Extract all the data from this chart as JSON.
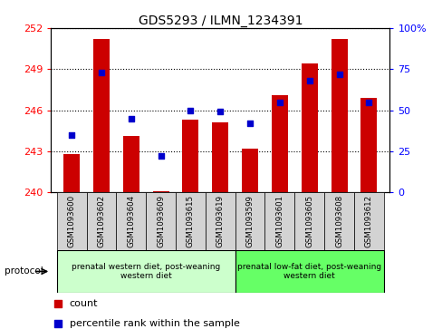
{
  "title": "GDS5293 / ILMN_1234391",
  "samples": [
    "GSM1093600",
    "GSM1093602",
    "GSM1093604",
    "GSM1093609",
    "GSM1093615",
    "GSM1093619",
    "GSM1093599",
    "GSM1093601",
    "GSM1093605",
    "GSM1093608",
    "GSM1093612"
  ],
  "count_values": [
    242.8,
    251.2,
    244.1,
    240.1,
    245.3,
    245.1,
    243.2,
    247.1,
    249.4,
    251.2,
    246.9
  ],
  "percentile_values": [
    35,
    73,
    45,
    22,
    50,
    49,
    42,
    55,
    68,
    72,
    55
  ],
  "y_min": 240,
  "y_max": 252,
  "y_ticks": [
    240,
    243,
    246,
    249,
    252
  ],
  "y2_ticks": [
    0,
    25,
    50,
    75,
    100
  ],
  "group1_label": "prenatal western diet, post-weaning\nwestern diet",
  "group2_label": "prenatal low-fat diet, post-weaning\nwestern diet",
  "group1_count": 6,
  "group2_count": 5,
  "protocol_label": "protocol",
  "bar_color": "#cc0000",
  "dot_color": "#0000cc",
  "legend_count": "count",
  "legend_pct": "percentile rank within the sample",
  "group1_color": "#ccffcc",
  "group2_color": "#66ff66",
  "sample_box_color": "#d3d3d3",
  "bar_width": 0.55,
  "figsize": [
    4.89,
    3.63
  ],
  "dpi": 100
}
